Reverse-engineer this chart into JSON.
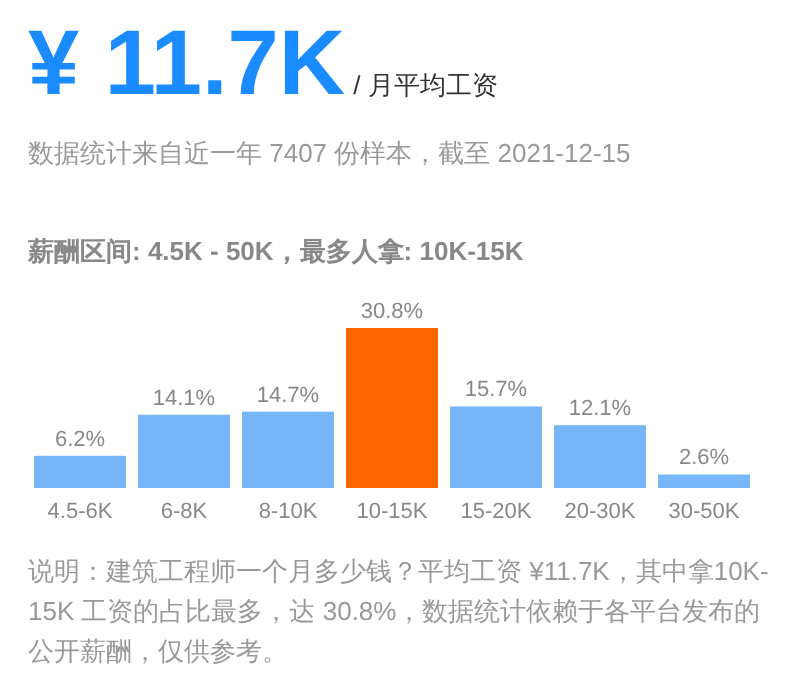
{
  "chart_data": {
    "type": "bar",
    "title": "¥ 11.7K",
    "subtitle": "/ 月平均工资",
    "annotations": [
      "数据统计来自近一年 7407 份样本，截至 2021-12-15",
      "薪酬区间: 4.5K - 50K，最多人拿: 10K-15K",
      "说明：建筑工程师一个月多少钱？平均工资 ¥11.7K，其中拿10K-15K 工资的占比最多，达 30.8%，数据统计依赖于各平台发布的公开薪酬，仅供参考。"
    ],
    "categories": [
      "4.5-6K",
      "6-8K",
      "8-10K",
      "10-15K",
      "15-20K",
      "20-30K",
      "30-50K"
    ],
    "values": [
      6.2,
      14.1,
      14.7,
      30.8,
      15.7,
      12.1,
      2.6
    ],
    "value_labels": [
      "6.2%",
      "14.1%",
      "14.7%",
      "30.8%",
      "15.7%",
      "12.1%",
      "2.6%"
    ],
    "colors": [
      "#78b6fa",
      "#78b6fa",
      "#78b6fa",
      "#ff6600",
      "#78b6fa",
      "#78b6fa",
      "#78b6fa"
    ]
  }
}
